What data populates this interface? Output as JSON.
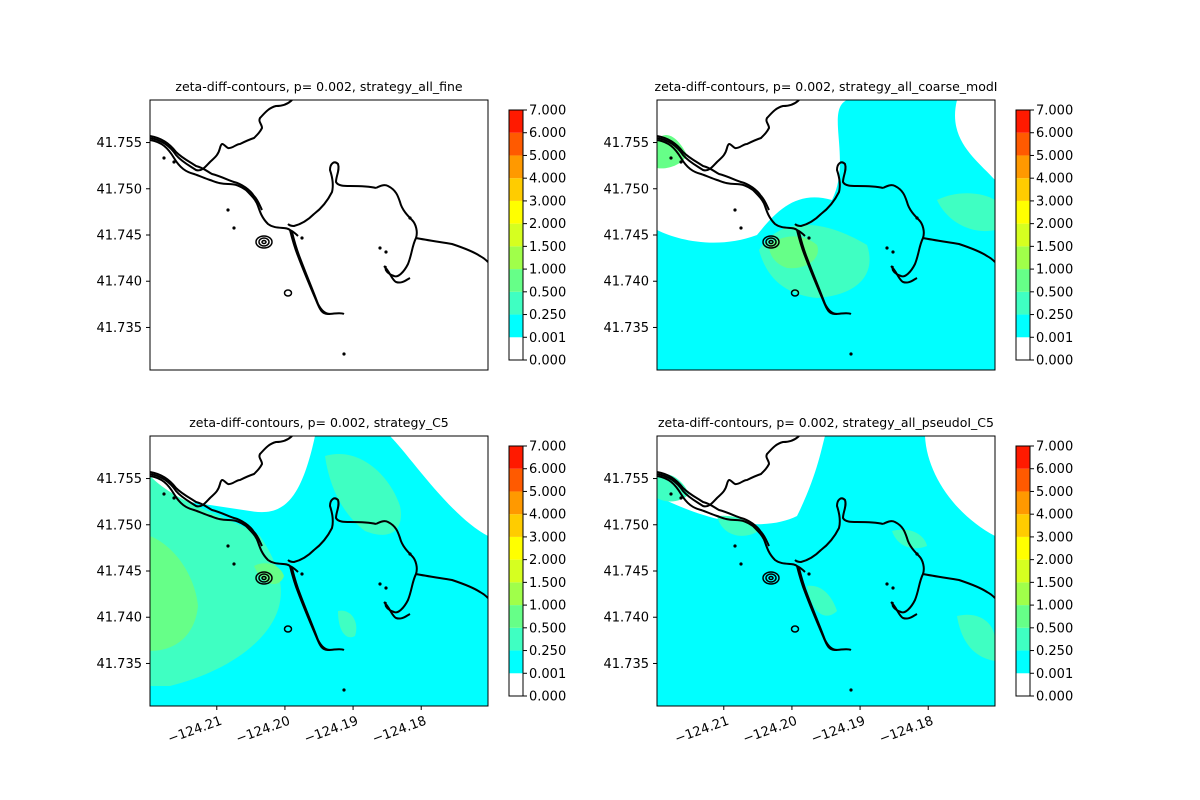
{
  "chart_data": {
    "type": "contour",
    "colorbar": {
      "levels": [
        "0.000",
        "0.001",
        "0.250",
        "0.500",
        "1.000",
        "1.500",
        "2.000",
        "3.000",
        "4.000",
        "5.000",
        "6.000",
        "7.000"
      ],
      "colors": [
        "#ffffff",
        "#00ffff",
        "#3fffc2",
        "#66ff88",
        "#a0ff4a",
        "#d6ff20",
        "#ffff00",
        "#ffcc00",
        "#ff9900",
        "#ff5a00",
        "#ff1a00"
      ]
    },
    "x_ticks": [
      "−124.21",
      "−124.20",
      "−124.19",
      "−124.18"
    ],
    "x_tick_values": [
      -124.21,
      -124.2,
      -124.19,
      -124.18
    ],
    "y_ticks": [
      "41.735",
      "41.740",
      "41.745",
      "41.750",
      "41.755"
    ],
    "y_tick_values": [
      41.735,
      41.74,
      41.745,
      41.75,
      41.755
    ],
    "xlim": [
      -124.2198,
      -124.1702
    ],
    "ylim": [
      41.7304,
      41.7596
    ],
    "panels": [
      {
        "title": "zeta-diff-contours, p= 0.002, strategy_all_fine",
        "fill": "none",
        "show_xticks": false
      },
      {
        "title": "zeta-diff-contours, p= 0.002, strategy_all_coarse_modI",
        "fill": "coarse",
        "show_xticks": false
      },
      {
        "title": "zeta-diff-contours, p= 0.002, strategy_C5",
        "fill": "c5",
        "show_xticks": true
      },
      {
        "title": "zeta-diff-contours, p= 0.002, strategy_all_pseudoI_C5",
        "fill": "pseudo",
        "show_xticks": true
      }
    ]
  }
}
